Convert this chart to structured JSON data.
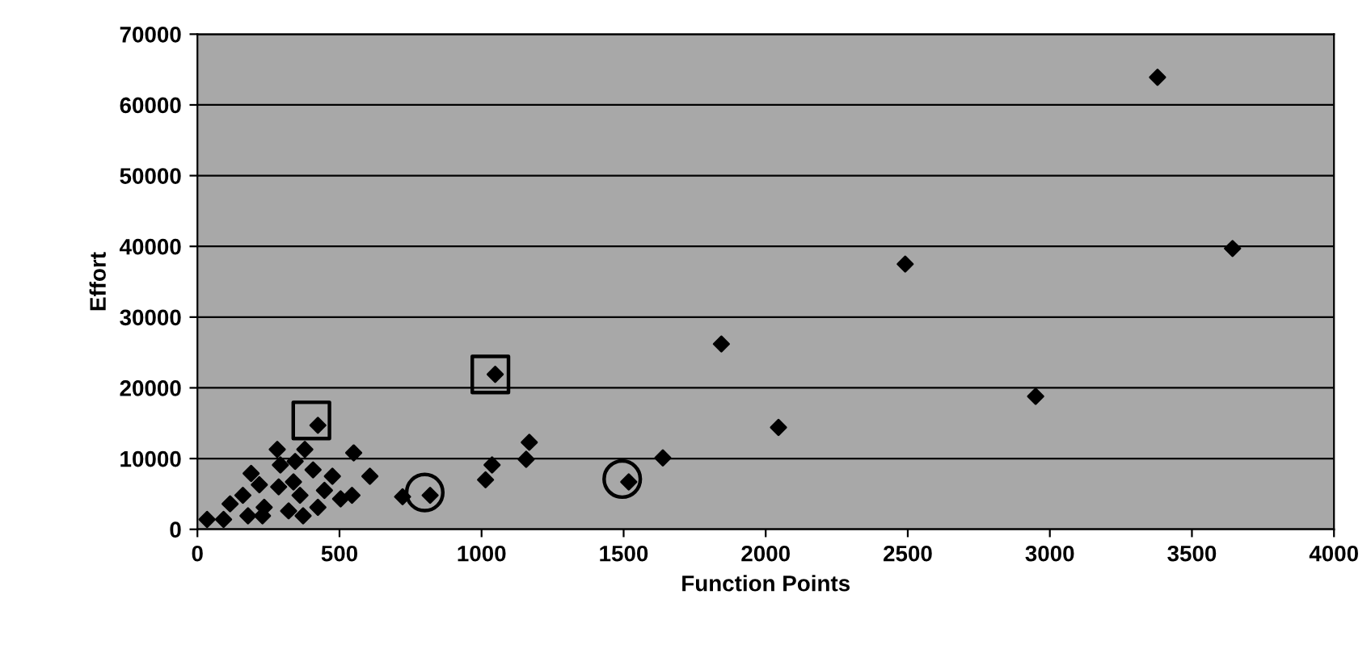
{
  "chart_data": {
    "type": "scatter",
    "xlabel": "Function Points",
    "ylabel": "Effort",
    "xlim": [
      0,
      4000
    ],
    "ylim": [
      0,
      70000
    ],
    "xticks": [
      0,
      500,
      1000,
      1500,
      2000,
      2500,
      3000,
      3500,
      4000
    ],
    "yticks": [
      0,
      10000,
      20000,
      30000,
      40000,
      50000,
      60000,
      70000
    ],
    "grid": "y",
    "series": [
      {
        "color": "#000000",
        "marker": "diamond",
        "x": [
          3379,
          3643,
          2491,
          2950,
          1844,
          2045,
          1638,
          1518,
          1048,
          1168,
          1157,
          1037,
          1014,
          424,
          281,
          378,
          292,
          344,
          550,
          407,
          475,
          607,
          189,
          218,
          286,
          338,
          361,
          447,
          504,
          544,
          424,
          372,
          321,
          160,
          115,
          178,
          229,
          235,
          34,
          92,
          722,
          819
        ],
        "values": [
          63900,
          39700,
          37500,
          18800,
          26200,
          14400,
          10100,
          6700,
          21900,
          12300,
          9900,
          9100,
          7000,
          14700,
          11300,
          11300,
          9100,
          9600,
          10800,
          8400,
          7500,
          7500,
          7900,
          6300,
          6000,
          6700,
          4800,
          5500,
          4300,
          4800,
          3100,
          1900,
          2600,
          4800,
          3600,
          1900,
          1900,
          3100,
          1400,
          1400,
          4600,
          4800
        ]
      },
      {
        "color": "#000000",
        "marker": "square",
        "x": [
          401,
          1031
        ],
        "values": [
          15400,
          21900
        ]
      },
      {
        "color": "#000000",
        "marker": "circle",
        "x": [
          800,
          1495
        ],
        "values": [
          5200,
          7100
        ]
      }
    ]
  }
}
